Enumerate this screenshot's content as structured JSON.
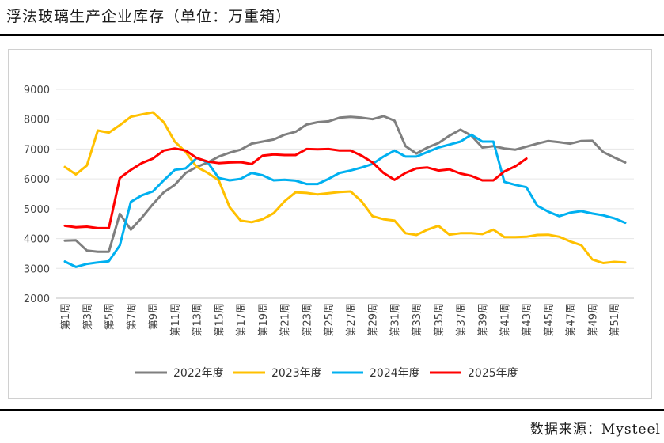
{
  "title": "浮法玻璃生产企业库存（单位：万重箱）",
  "source": "数据来源：Mysteel",
  "chart_data": {
    "type": "line",
    "title": "浮法玻璃生产企业库存（单位：万重箱）",
    "xlabel": "",
    "ylabel": "",
    "ylim": [
      2000,
      9000
    ],
    "yticks": [
      2000,
      3000,
      4000,
      5000,
      6000,
      7000,
      8000,
      9000
    ],
    "x_tick_labels": [
      "第1周",
      "第3周",
      "第5周",
      "第7周",
      "第9周",
      "第11周",
      "第13周",
      "第15周",
      "第17周",
      "第19周",
      "第21周",
      "第23周",
      "第25周",
      "第27周",
      "第29周",
      "第31周",
      "第33周",
      "第35周",
      "第37周",
      "第39周",
      "第41周",
      "第43周",
      "第45周",
      "第47周",
      "第49周",
      "第51周"
    ],
    "num_weeks": 52,
    "legend_position": "bottom",
    "series": [
      {
        "name": "2022年度",
        "color": "#7f7f7f",
        "values": [
          3930,
          3940,
          3600,
          3560,
          3560,
          4830,
          4300,
          4700,
          5150,
          5550,
          5800,
          6200,
          6400,
          6550,
          6750,
          6880,
          6980,
          7180,
          7250,
          7320,
          7480,
          7580,
          7820,
          7900,
          7930,
          8050,
          8080,
          8050,
          8000,
          8100,
          7950,
          7100,
          6850,
          7050,
          7200,
          7450,
          7650,
          7450,
          7050,
          7100,
          7020,
          6980,
          7080,
          7180,
          7270,
          7230,
          7180,
          7270,
          7280,
          6900,
          6720,
          6550
        ]
      },
      {
        "name": "2023年度",
        "color": "#ffc000",
        "values": [
          6400,
          6150,
          6450,
          7620,
          7550,
          7800,
          8080,
          8160,
          8230,
          7900,
          7250,
          6900,
          6400,
          6200,
          5950,
          5050,
          4600,
          4550,
          4650,
          4850,
          5250,
          5550,
          5530,
          5480,
          5520,
          5560,
          5580,
          5250,
          4750,
          4650,
          4600,
          4180,
          4120,
          4300,
          4430,
          4130,
          4180,
          4180,
          4150,
          4300,
          4050,
          4050,
          4060,
          4120,
          4130,
          4060,
          3900,
          3780,
          3300,
          3180,
          3220,
          3200
        ]
      },
      {
        "name": "2024年度",
        "color": "#00b0f0",
        "values": [
          3230,
          3050,
          3150,
          3200,
          3240,
          3770,
          5230,
          5450,
          5580,
          5950,
          6300,
          6350,
          6700,
          6550,
          6030,
          5950,
          6000,
          6200,
          6120,
          5950,
          5970,
          5940,
          5830,
          5830,
          6000,
          6200,
          6280,
          6380,
          6500,
          6750,
          6950,
          6750,
          6750,
          6900,
          7050,
          7150,
          7250,
          7480,
          7250,
          7250,
          5900,
          5800,
          5720,
          5100,
          4900,
          4750,
          4870,
          4920,
          4840,
          4780,
          4680,
          4530
        ]
      },
      {
        "name": "2025年度",
        "color": "#ff0000",
        "values": [
          4430,
          4380,
          4400,
          4350,
          4350,
          6030,
          6300,
          6530,
          6680,
          6950,
          7020,
          6950,
          6700,
          6580,
          6530,
          6550,
          6560,
          6500,
          6780,
          6820,
          6800,
          6800,
          7000,
          6990,
          7000,
          6950,
          6950,
          6780,
          6550,
          6200,
          5970,
          6200,
          6350,
          6380,
          6280,
          6320,
          6180,
          6100,
          5950,
          5950,
          6250,
          6420,
          6680
        ]
      }
    ]
  }
}
